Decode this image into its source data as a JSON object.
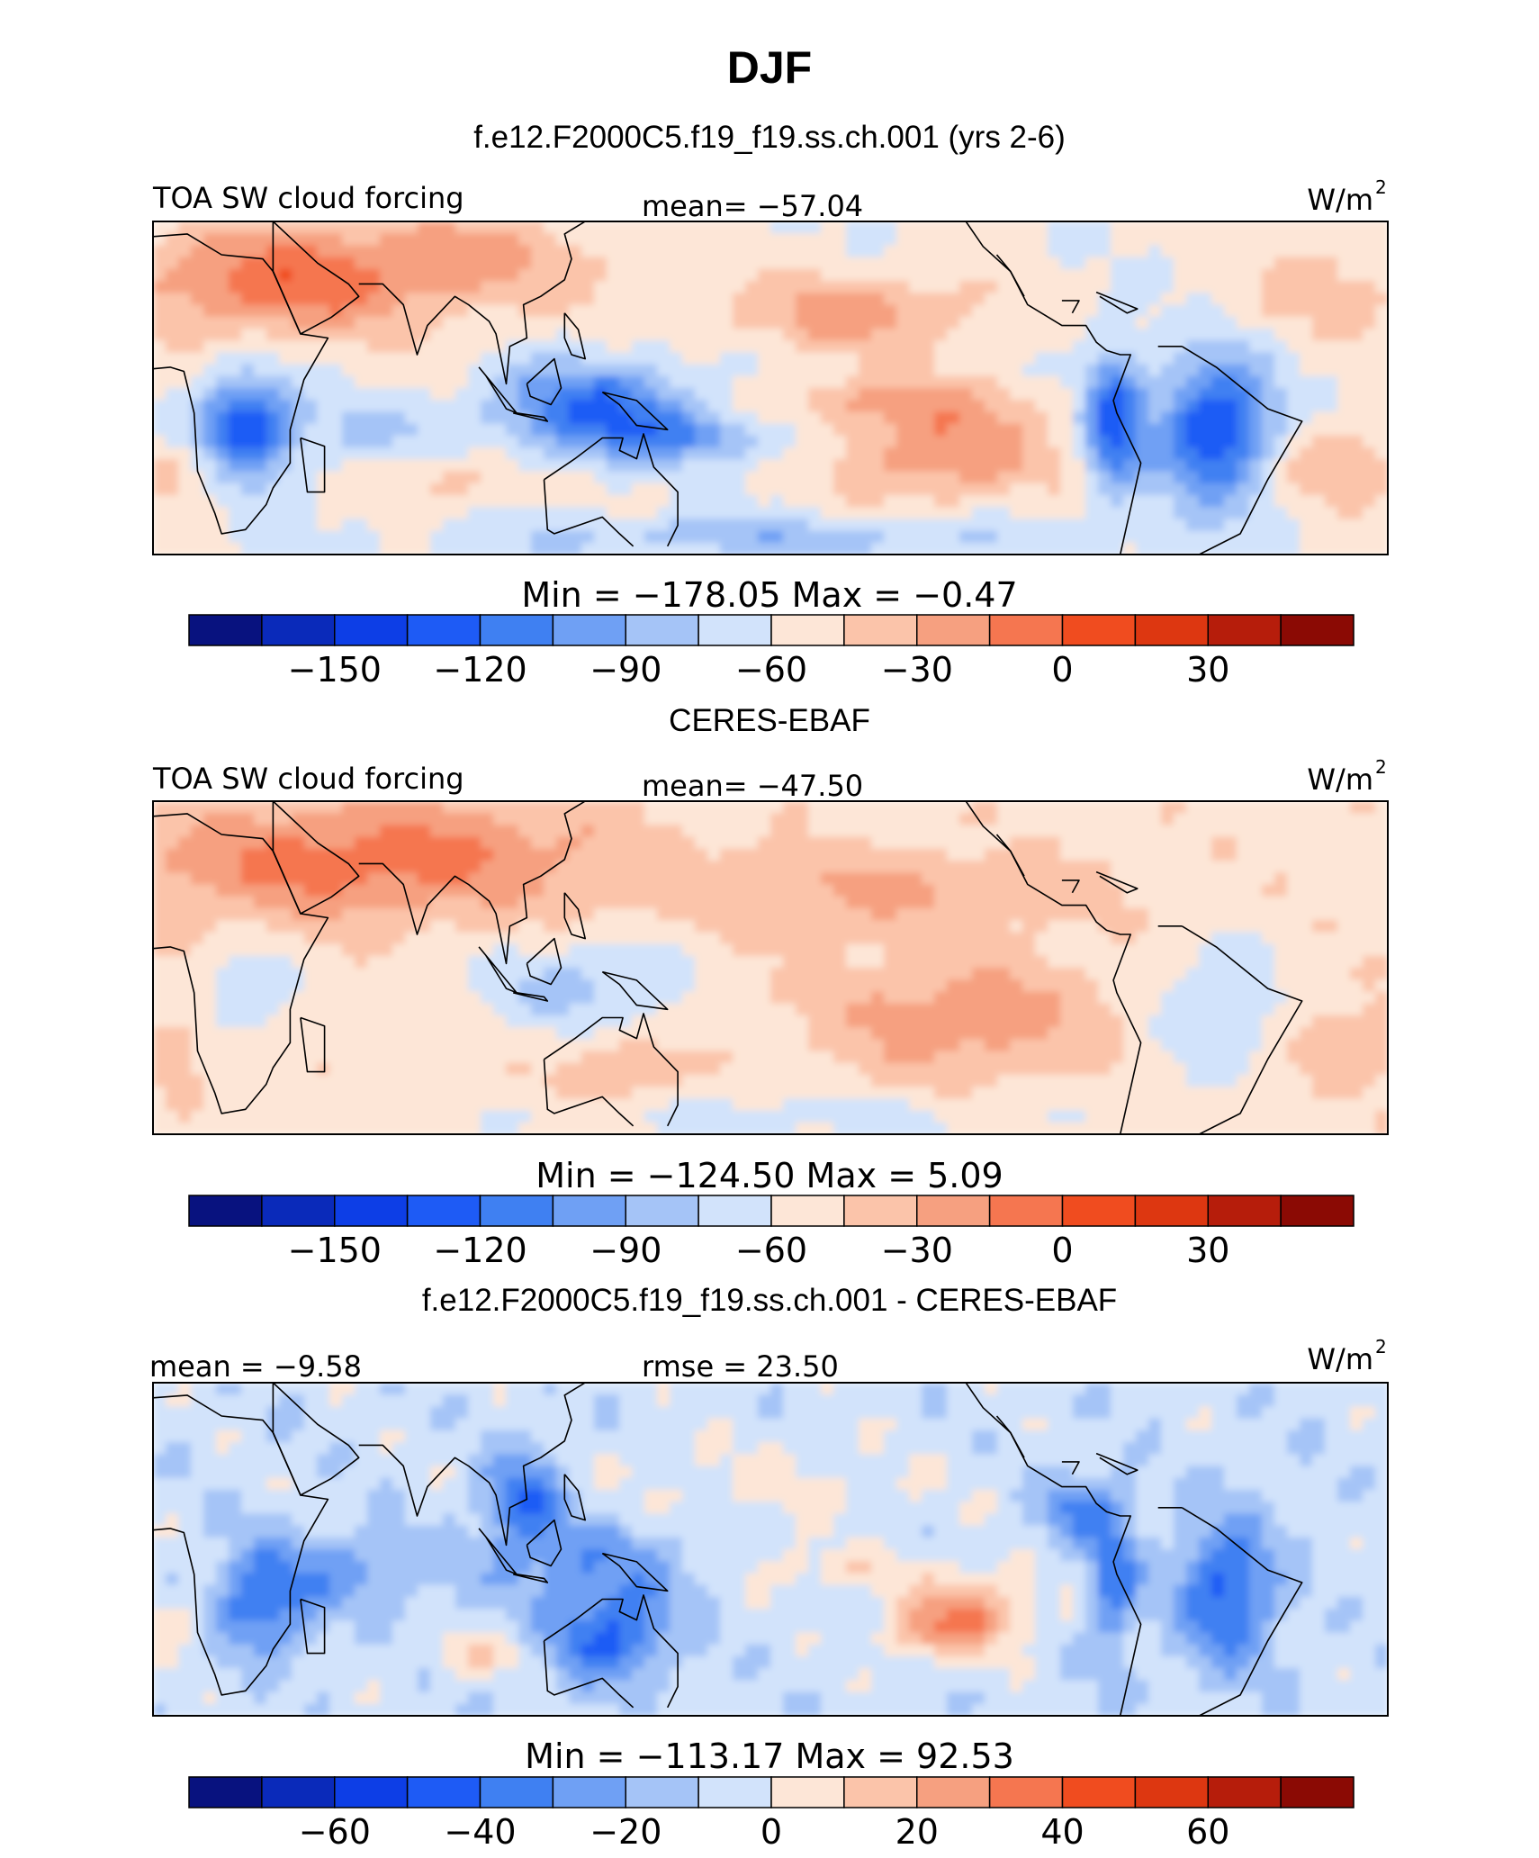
{
  "figure": {
    "title": "DJF",
    "subtitle": "f.e12.F2000C5.f19_f19.ss.ch.001 (yrs 2-6)"
  },
  "colors": [
    "#08127f",
    "#0a2aba",
    "#0d3ee6",
    "#1e5bf5",
    "#3f80f2",
    "#6fa0f4",
    "#a5c4f7",
    "#d2e3fb",
    "#fde6d7",
    "#fbc4aa",
    "#f6a080",
    "#f57650",
    "#f04c1f",
    "#dd3711",
    "#b61d0b",
    "#8b0a04"
  ],
  "chart_data": [
    {
      "type": "heatmap",
      "panel_title": "",
      "left_label": "TOA SW cloud forcing",
      "center_label": "mean=  −57.04",
      "units_base": "W/m",
      "units_exp": "2",
      "stats": "Min  =  −178.05  Max  =    −0.47",
      "colorbar": {
        "levels": [
          -165,
          -150,
          -135,
          -120,
          -105,
          -90,
          -75,
          -60,
          -45,
          -30,
          -15,
          0,
          15,
          30,
          45
        ],
        "tick_labels": [
          "−150",
          "−120",
          "−90",
          "−60",
          "−30",
          "0",
          "30"
        ],
        "tick_values": [
          -150,
          -120,
          -90,
          -60,
          -30,
          0,
          30
        ]
      },
      "field": "model"
    },
    {
      "type": "heatmap",
      "panel_title": "CERES-EBAF",
      "left_label": "TOA SW cloud forcing",
      "center_label": "mean=  −47.50",
      "units_base": "W/m",
      "units_exp": "2",
      "stats": "Min  =  −124.50  Max  =      5.09",
      "colorbar": {
        "levels": [
          -165,
          -150,
          -135,
          -120,
          -105,
          -90,
          -75,
          -60,
          -45,
          -30,
          -15,
          0,
          15,
          30,
          45
        ],
        "tick_labels": [
          "−150",
          "−120",
          "−90",
          "−60",
          "−30",
          "0",
          "30"
        ],
        "tick_values": [
          -150,
          -120,
          -90,
          -60,
          -30,
          0,
          30
        ]
      },
      "field": "obs"
    },
    {
      "type": "heatmap",
      "panel_title": "f.e12.F2000C5.f19_f19.ss.ch.001 - CERES-EBAF",
      "left_label": "mean  =   −9.58",
      "center_label": "rmse  =   23.50",
      "units_base": "W/m",
      "units_exp": "2",
      "stats": "Min  =  −113.17  Max  =    92.53",
      "colorbar": {
        "levels": [
          -70,
          -60,
          -50,
          -40,
          -30,
          -20,
          -10,
          0,
          10,
          20,
          30,
          40,
          50,
          60,
          70
        ],
        "tick_labels": [
          "−60",
          "−40",
          "−20",
          "0",
          "20",
          "40",
          "60"
        ],
        "tick_values": [
          -60,
          -40,
          -20,
          0,
          20,
          40,
          60
        ]
      },
      "field": "diff"
    }
  ]
}
